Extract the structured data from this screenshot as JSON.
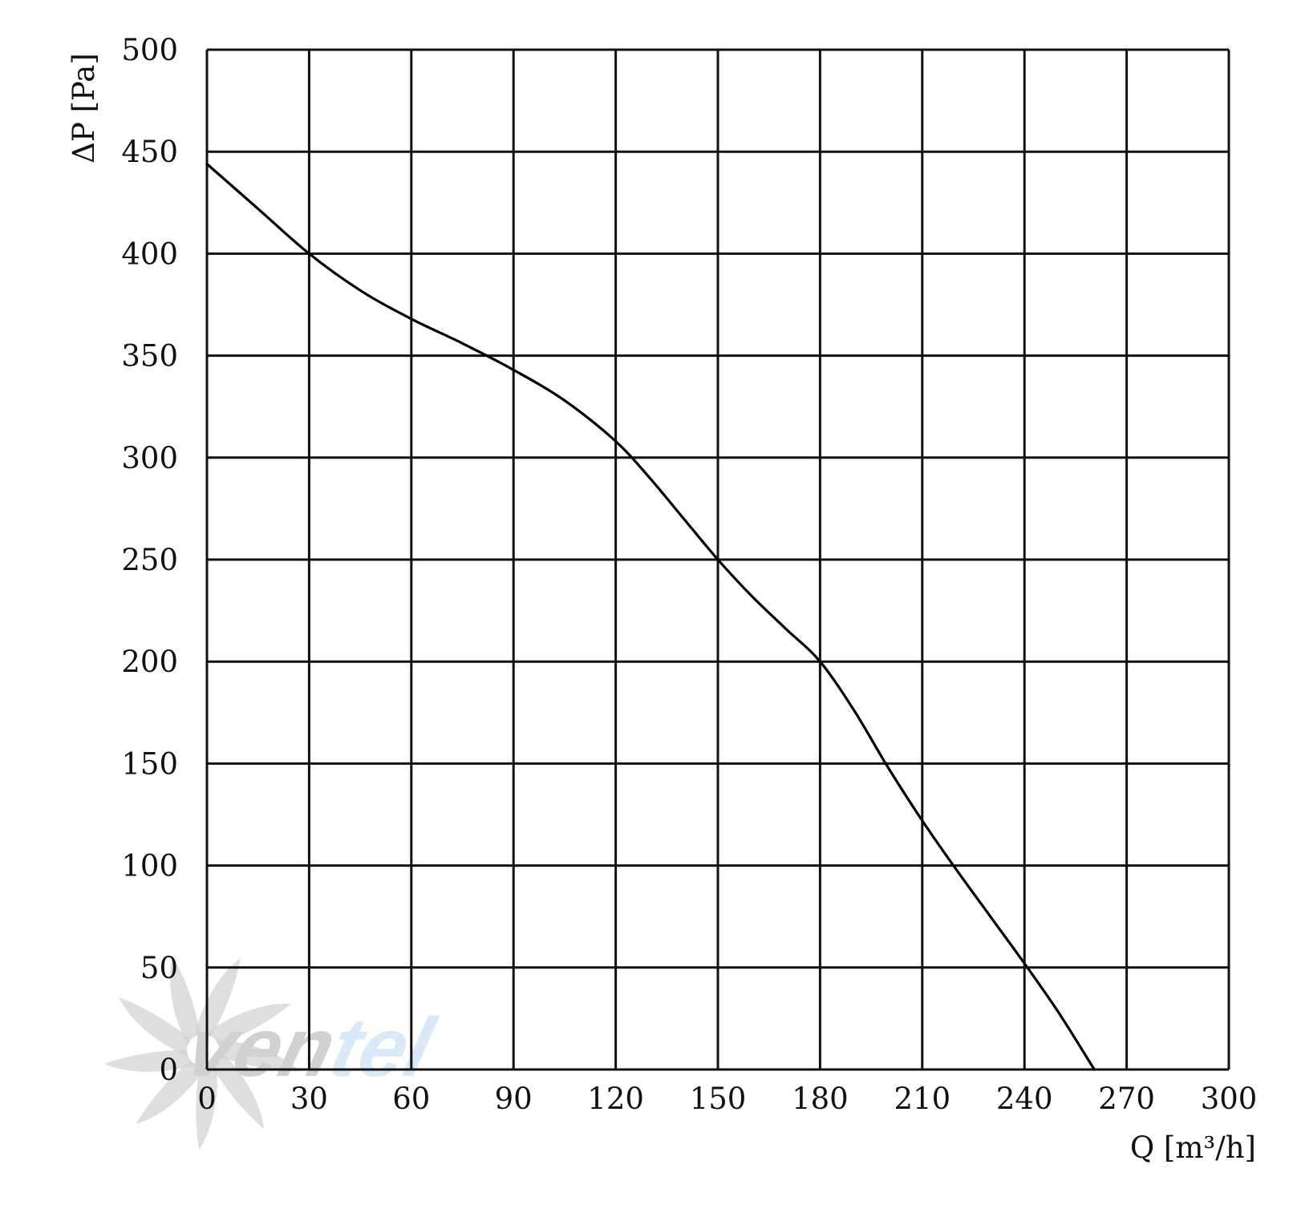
{
  "chart_data": {
    "type": "line",
    "title": "",
    "xlabel": "Q [m³/h]",
    "ylabel": "ΔP [Pa]",
    "xlim": [
      0,
      300
    ],
    "ylim": [
      0,
      500
    ],
    "x_ticks": [
      0,
      30,
      60,
      90,
      120,
      150,
      180,
      210,
      240,
      270,
      300
    ],
    "y_ticks": [
      0,
      50,
      100,
      150,
      200,
      250,
      300,
      350,
      400,
      450,
      500
    ],
    "grid": true,
    "legend": "none",
    "series": [
      {
        "color": "#000000",
        "x": [
          0,
          15,
          30,
          45,
          60,
          75,
          90,
          105,
          120,
          130,
          140,
          150,
          160,
          170,
          180,
          190,
          200,
          210,
          220,
          230,
          240,
          250,
          260.5
        ],
        "y": [
          444,
          422,
          400,
          382,
          368,
          356,
          343,
          328,
          308,
          290,
          270,
          250,
          232,
          216,
          200,
          176,
          148,
          122,
          98,
          75,
          52,
          28,
          0
        ]
      }
    ]
  },
  "watermark": {
    "text_part1": "ven",
    "text_part2": "tel",
    "color_dark": "#c7c9cc",
    "color_light": "#d3e6f7",
    "icon": "fan-logo-icon"
  },
  "colors": {
    "grid": "#111111",
    "curve": "#000000",
    "background": "#ffffff"
  }
}
